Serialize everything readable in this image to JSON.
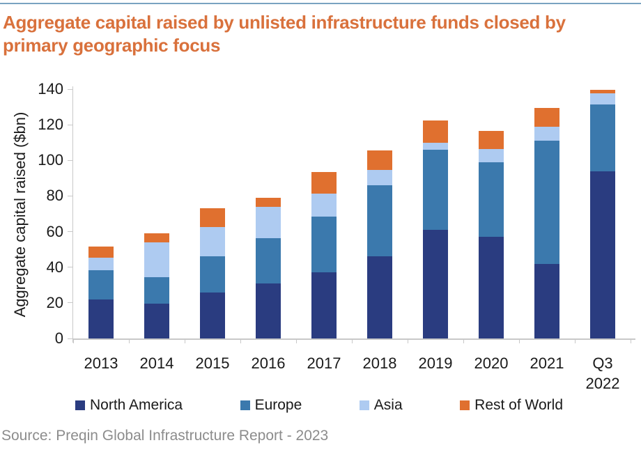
{
  "page": {
    "top_rule_color": "#79A3C1",
    "title": "Aggregate capital raised by unlisted infrastructure funds closed by primary geographic focus",
    "title_color": "#D9713C",
    "source": "Source: Preqin Global Infrastructure Report - 2023"
  },
  "chart_data": {
    "type": "bar",
    "stacked": true,
    "title": "Aggregate capital raised by unlisted infrastructure funds closed by primary geographic focus",
    "xlabel": "",
    "ylabel": "Aggregate capital raised ($bn)",
    "ylim": [
      0,
      140
    ],
    "yticks": [
      0,
      20,
      40,
      60,
      80,
      100,
      120,
      140
    ],
    "grid": false,
    "legend_position": "bottom",
    "categories": [
      "2013",
      "2014",
      "2015",
      "2016",
      "2017",
      "2018",
      "2019",
      "2020",
      "2021",
      "Q3\n2022"
    ],
    "series": [
      {
        "name": "North America",
        "color": "#2A3C80",
        "values": [
          22,
          19.5,
          26,
          31,
          37,
          46,
          61,
          57,
          42,
          94
        ]
      },
      {
        "name": "Europe",
        "color": "#3B79AD",
        "values": [
          16.5,
          15,
          20,
          25.5,
          31.5,
          40,
          45,
          42,
          69,
          37.5
        ]
      },
      {
        "name": "Asia",
        "color": "#AECBF1",
        "values": [
          7,
          19.5,
          16.5,
          17.5,
          13,
          8.5,
          4,
          7.5,
          8,
          6
        ]
      },
      {
        "name": "Rest of World",
        "color": "#E0702F",
        "values": [
          6,
          5,
          10.5,
          5,
          12,
          11,
          12.5,
          10,
          10.5,
          2
        ]
      }
    ],
    "totals": [
      51.5,
      59,
      73,
      79,
      93.5,
      105.5,
      122.5,
      116.5,
      129.5,
      139.5
    ]
  }
}
